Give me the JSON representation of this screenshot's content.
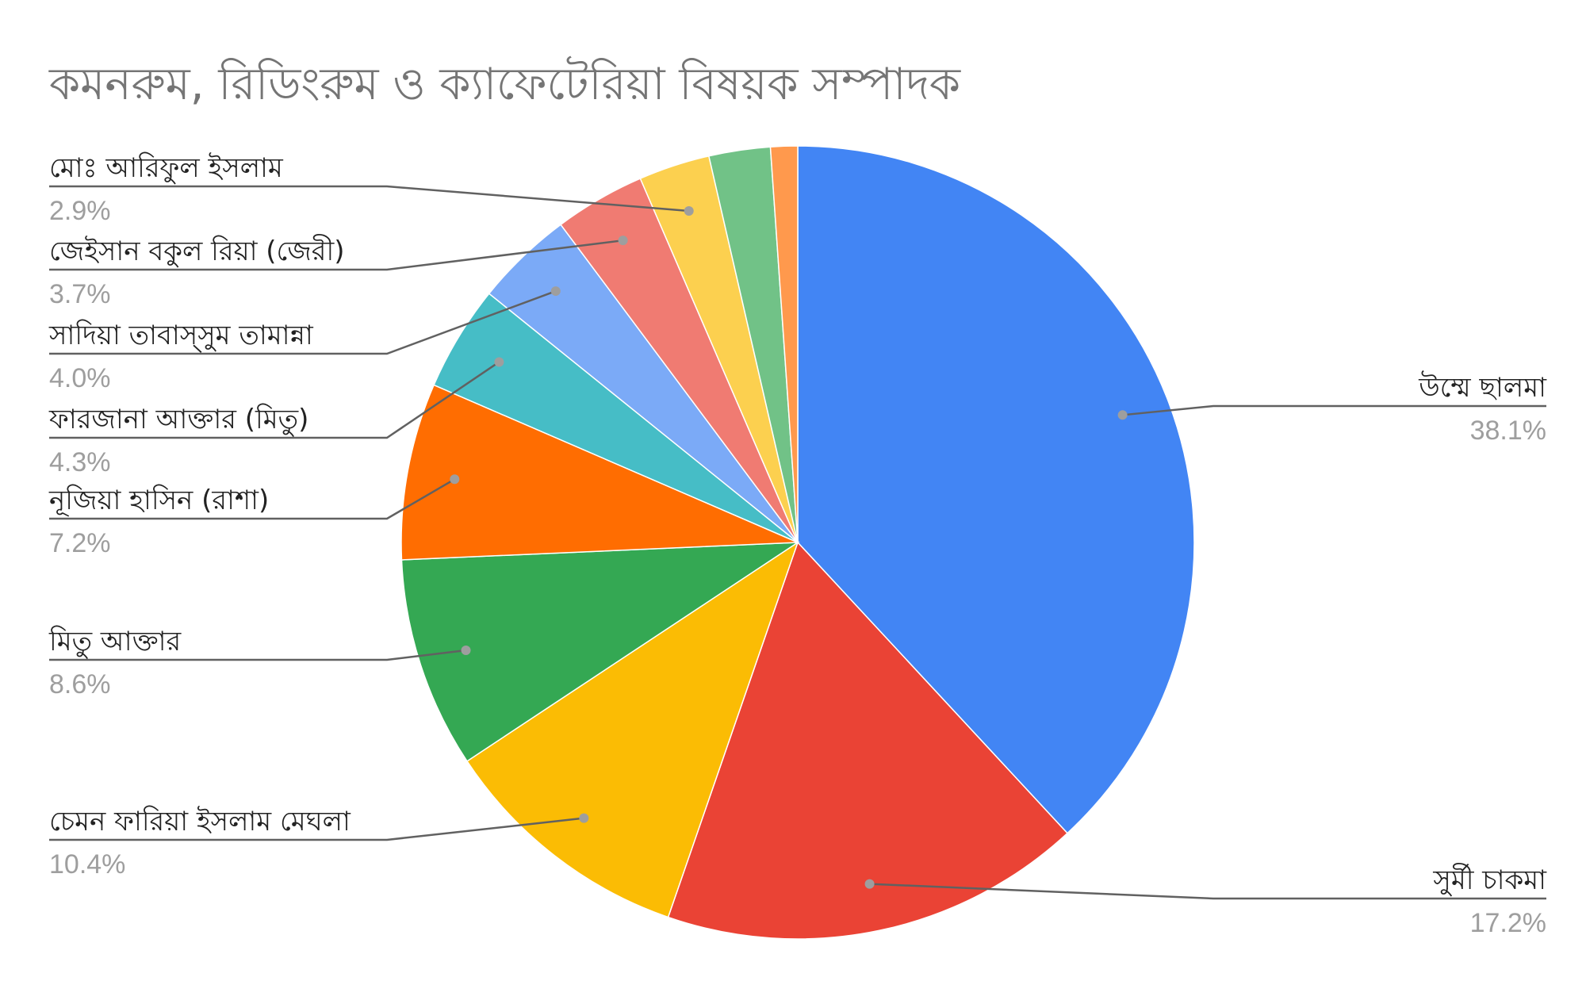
{
  "chart_data": {
    "type": "pie",
    "title": "কমনরুম, রিডিংরুম ও ক্যাফেটেরিয়া বিষয়ক সম্পাদক",
    "slices": [
      {
        "label": "উম্মে ছালমা",
        "value": 38.1,
        "display": "38.1%",
        "color": "#4285F4"
      },
      {
        "label": "সুর্মী চাকমা",
        "value": 17.2,
        "display": "17.2%",
        "color": "#EA4335"
      },
      {
        "label": "চেমন ফারিয়া ইসলাম মেঘলা",
        "value": 10.4,
        "display": "10.4%",
        "color": "#FBBC04"
      },
      {
        "label": "মিতু আক্তার",
        "value": 8.6,
        "display": "8.6%",
        "color": "#34A853"
      },
      {
        "label": "নূজিয়া হাসিন (রাশা)",
        "value": 7.2,
        "display": "7.2%",
        "color": "#FF6D01"
      },
      {
        "label": "ফারজানা আক্তার (মিতু)",
        "value": 4.3,
        "display": "4.3%",
        "color": "#46BDC6"
      },
      {
        "label": "সাদিয়া তাবাস্সুম তামান্না",
        "value": 4.0,
        "display": "4.0%",
        "color": "#7BAAF7"
      },
      {
        "label": "জেইসান বকুল রিয়া (জেরী)",
        "value": 3.7,
        "display": "3.7%",
        "color": "#F07B72"
      },
      {
        "label": "মোঃ আরিফুল ইসলাম",
        "value": 2.9,
        "display": "2.9%",
        "color": "#FCD04F"
      },
      {
        "label": "",
        "value": 2.5,
        "display": "",
        "color": "#71C287"
      },
      {
        "label": "",
        "value": 1.1,
        "display": "",
        "color": "#FF994D"
      }
    ]
  }
}
